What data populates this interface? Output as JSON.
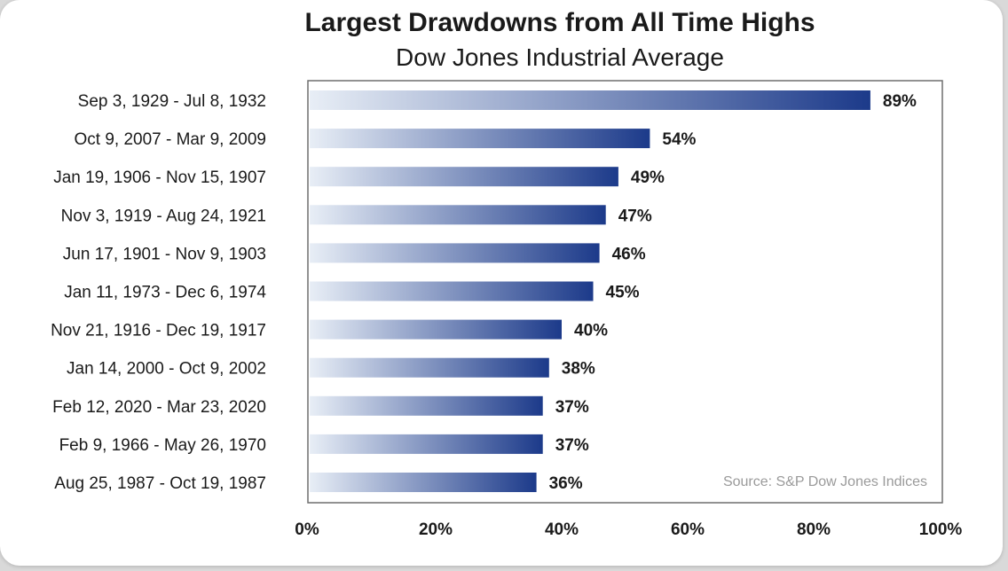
{
  "chart_data": {
    "type": "bar",
    "orientation": "horizontal",
    "title": "Largest Drawdowns from All Time Highs",
    "subtitle": "Dow Jones Industrial Average",
    "categories": [
      "Sep 3, 1929 - Jul 8, 1932",
      "Oct 9, 2007 - Mar 9, 2009",
      "Jan 19, 1906 - Nov 15, 1907",
      "Nov 3, 1919 - Aug 24, 1921",
      "Jun 17, 1901 - Nov 9, 1903",
      "Jan 11, 1973 - Dec 6, 1974",
      "Nov 21, 1916 - Dec 19, 1917",
      "Jan 14, 2000 - Oct 9, 2002",
      "Feb 12, 2020 - Mar 23, 2020",
      "Feb 9, 1966 - May 26, 1970",
      "Aug 25, 1987 - Oct 19, 1987"
    ],
    "values": [
      89,
      54,
      49,
      47,
      46,
      45,
      40,
      38,
      37,
      37,
      36
    ],
    "value_labels": [
      "89%",
      "54%",
      "49%",
      "47%",
      "46%",
      "45%",
      "40%",
      "38%",
      "37%",
      "37%",
      "36%"
    ],
    "xlim": [
      0,
      100
    ],
    "x_ticks": [
      "0%",
      "20%",
      "40%",
      "60%",
      "80%",
      "100%"
    ],
    "x_tick_values": [
      0,
      20,
      40,
      60,
      80,
      100
    ],
    "grid": false,
    "source": "Source: S&P Dow Jones Indices",
    "colors": {
      "bar_start": "#e8eef6",
      "bar_end": "#1c3a8a"
    }
  }
}
